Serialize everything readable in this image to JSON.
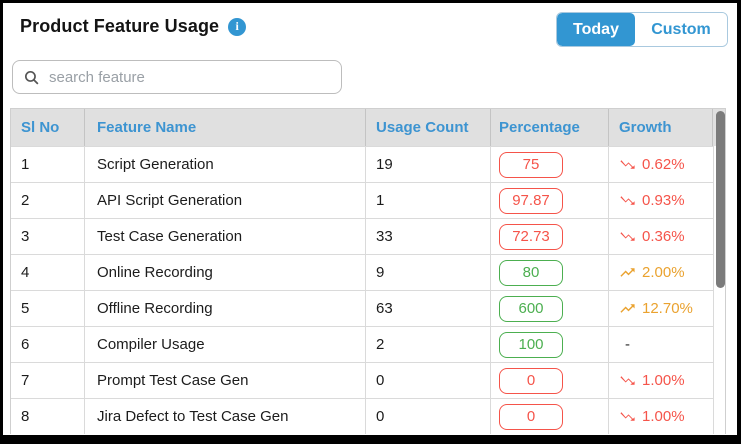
{
  "title": "Product Feature Usage",
  "toggle": {
    "today_label": "Today",
    "custom_label": "Custom",
    "active": "Today"
  },
  "search": {
    "placeholder": "search feature",
    "value": ""
  },
  "table": {
    "columns": [
      "Sl No",
      "Feature Name",
      "Usage Count",
      "Percentage",
      "Growth"
    ],
    "rows": [
      {
        "sl_no": "1",
        "feature_name": "Script Generation",
        "usage_count": "19",
        "percentage": "75",
        "percentage_status": "low",
        "growth": "0.62%",
        "trend": "down"
      },
      {
        "sl_no": "2",
        "feature_name": "API Script Generation",
        "usage_count": "1",
        "percentage": "97.87",
        "percentage_status": "low",
        "growth": "0.93%",
        "trend": "down"
      },
      {
        "sl_no": "3",
        "feature_name": "Test Case Generation",
        "usage_count": "33",
        "percentage": "72.73",
        "percentage_status": "low",
        "growth": "0.36%",
        "trend": "down"
      },
      {
        "sl_no": "4",
        "feature_name": "Online Recording",
        "usage_count": "9",
        "percentage": "80",
        "percentage_status": "high",
        "growth": "2.00%",
        "trend": "up"
      },
      {
        "sl_no": "5",
        "feature_name": "Offline Recording",
        "usage_count": "63",
        "percentage": "600",
        "percentage_status": "high",
        "growth": "12.70%",
        "trend": "up"
      },
      {
        "sl_no": "6",
        "feature_name": "Compiler Usage",
        "usage_count": "2",
        "percentage": "100",
        "percentage_status": "high",
        "growth": "-",
        "trend": "none"
      },
      {
        "sl_no": "7",
        "feature_name": "Prompt Test Case Gen",
        "usage_count": "0",
        "percentage": "0",
        "percentage_status": "low",
        "growth": "1.00%",
        "trend": "down"
      },
      {
        "sl_no": "8",
        "feature_name": "Jira Defect to Test Case Gen",
        "usage_count": "0",
        "percentage": "0",
        "percentage_status": "low",
        "growth": "1.00%",
        "trend": "down"
      }
    ]
  },
  "icons": {
    "info": "info-icon",
    "search": "search-icon",
    "trend_up": "trending-up-icon",
    "trend_down": "trending-down-icon"
  },
  "colors": {
    "accent_blue": "#3296d2",
    "header_text_blue": "#3d94d1",
    "negative_red": "#f5544a",
    "positive_green": "#4caf50",
    "growth_orange": "#eaa22f",
    "header_bg": "#e0e0e0",
    "scrollbar_thumb": "#7b7b7b"
  }
}
